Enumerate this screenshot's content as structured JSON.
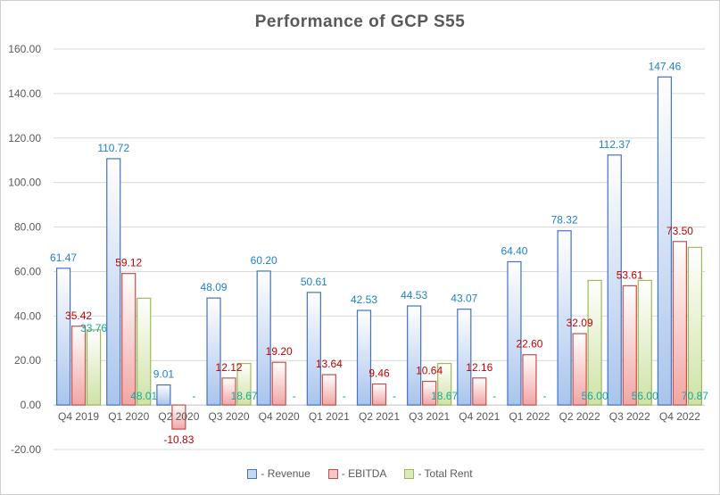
{
  "chart_data": {
    "type": "bar",
    "title": "Performance  of GCP S55",
    "categories": [
      "Q4 2019",
      "Q1 2020",
      "Q2 2020",
      "Q3 2020",
      "Q4 2020",
      "Q1 2021",
      "Q2 2021",
      "Q3 2021",
      "Q4 2021",
      "Q1 2022",
      "Q2 2022",
      "Q3 2022",
      "Q4 2022"
    ],
    "ylim": [
      -20,
      160
    ],
    "yticks": [
      "-20.00",
      "0.00",
      "20.00",
      "40.00",
      "60.00",
      "80.00",
      "100.00",
      "120.00",
      "140.00",
      "160.00"
    ],
    "grid": true,
    "legend_position": "bottom",
    "series": [
      {
        "name": "- Revenue",
        "color": "#4472c4",
        "label_color": "#1f7fc8",
        "values": [
          61.47,
          110.72,
          9.01,
          48.09,
          60.2,
          50.61,
          42.53,
          44.53,
          43.07,
          64.4,
          78.32,
          112.37,
          147.46
        ],
        "labels": [
          "61.47",
          "110.72",
          "9.01",
          "48.09",
          "60.20",
          "50.61",
          "42.53",
          "44.53",
          "43.07",
          "64.40",
          "78.32",
          "112.37",
          "147.46"
        ]
      },
      {
        "name": "- EBITDA",
        "color": "#c0504d",
        "label_color": "#c00000",
        "values": [
          35.42,
          59.12,
          -10.83,
          12.12,
          19.2,
          13.64,
          9.46,
          10.64,
          12.16,
          22.6,
          32.09,
          53.61,
          73.5
        ],
        "labels": [
          "35.42",
          "59.12",
          "-10.83",
          "12.12",
          "19.20",
          "13.64",
          "9.46",
          "10.64",
          "12.16",
          "22.60",
          "32.09",
          "53.61",
          "73.50"
        ]
      },
      {
        "name": "- Total Rent",
        "color": "#9bbb59",
        "label_color": "#16a89a",
        "values": [
          33.76,
          48.01,
          0,
          18.67,
          0,
          0,
          0,
          18.67,
          0,
          0,
          56.0,
          56.0,
          70.87
        ],
        "labels": [
          "33.76",
          "48.01",
          "-",
          "18.67",
          "-",
          "-",
          "-",
          "18.67",
          "-",
          "-",
          "56.00",
          "56.00",
          "70.87"
        ]
      }
    ]
  }
}
